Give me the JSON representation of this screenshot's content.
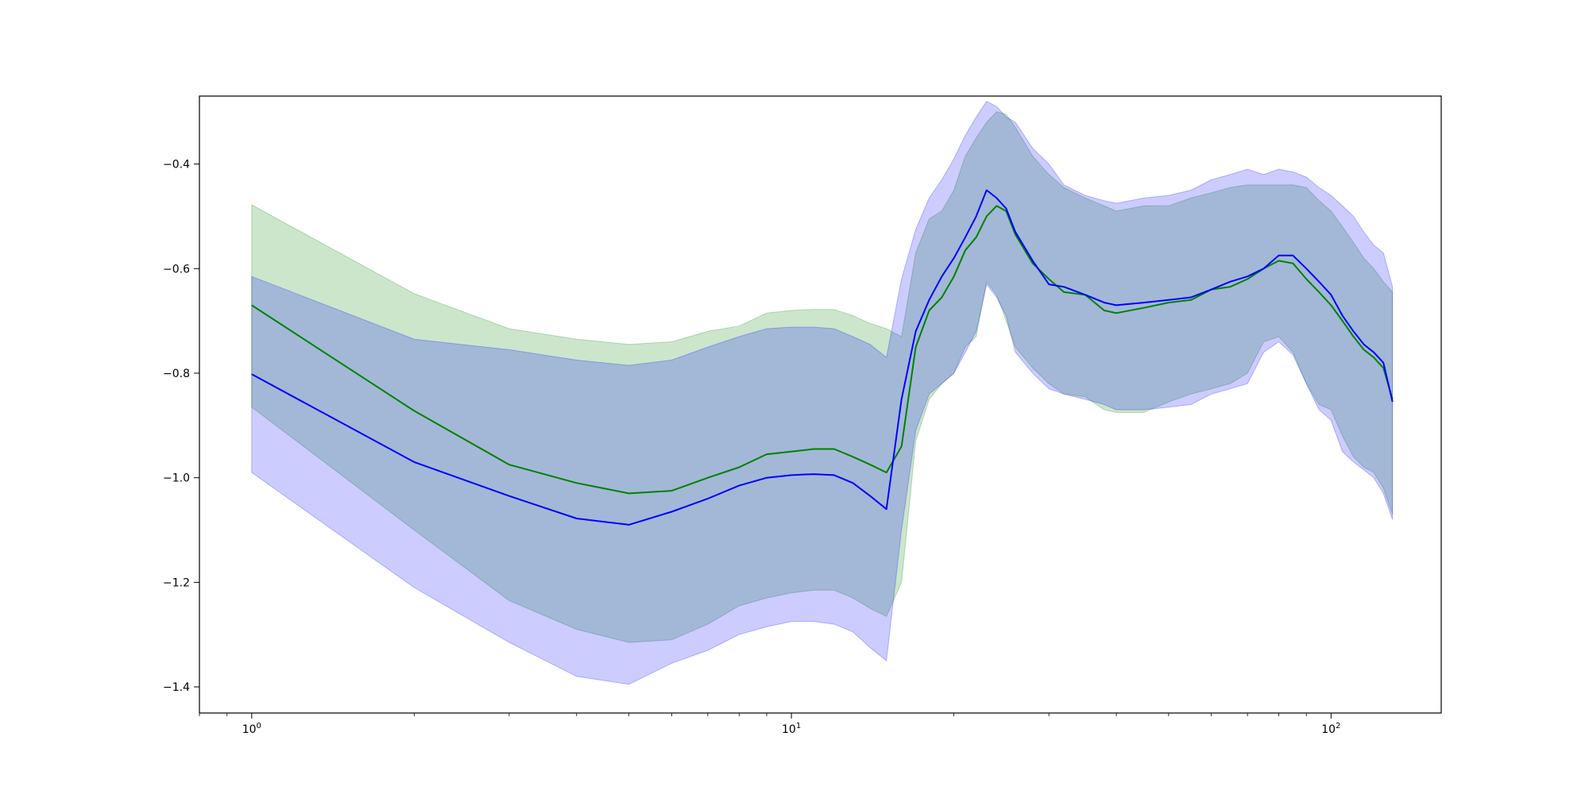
{
  "chart_data": {
    "type": "line",
    "title": "",
    "xlabel": "",
    "ylabel": "",
    "xscale": "log",
    "xlim": [
      0.8,
      160
    ],
    "ylim": [
      -1.45,
      -0.27
    ],
    "grid": false,
    "legend": "none",
    "x_ticks": [
      {
        "value": 1,
        "base": "10",
        "exp": "0"
      },
      {
        "value": 10,
        "base": "10",
        "exp": "1"
      },
      {
        "value": 100,
        "base": "10",
        "exp": "2"
      }
    ],
    "y_ticks": [
      {
        "value": -0.4,
        "label": "−0.4"
      },
      {
        "value": -0.6,
        "label": "−0.6"
      },
      {
        "value": -0.8,
        "label": "−0.8"
      },
      {
        "value": -1.0,
        "label": "−1.0"
      },
      {
        "value": -1.2,
        "label": "−1.2"
      },
      {
        "value": -1.4,
        "label": "−1.4"
      }
    ],
    "series": [
      {
        "color": "#008000",
        "band_color": "#008000",
        "x": [
          1,
          2,
          3,
          4,
          5,
          6,
          7,
          8,
          9,
          10,
          11,
          12,
          13,
          14,
          15,
          16,
          17,
          18,
          19,
          20,
          21,
          22,
          23,
          24,
          25,
          26,
          28,
          30,
          32,
          35,
          38,
          40,
          45,
          50,
          55,
          60,
          65,
          70,
          75,
          80,
          85,
          90,
          95,
          100,
          105,
          110,
          115,
          120,
          125,
          130
        ],
        "y": [
          -0.67,
          -0.872,
          -0.975,
          -1.01,
          -1.03,
          -1.025,
          -1.0,
          -0.98,
          -0.955,
          -0.95,
          -0.945,
          -0.945,
          -0.96,
          -0.975,
          -0.99,
          -0.94,
          -0.75,
          -0.68,
          -0.655,
          -0.615,
          -0.565,
          -0.54,
          -0.5,
          -0.48,
          -0.49,
          -0.535,
          -0.59,
          -0.62,
          -0.645,
          -0.65,
          -0.68,
          -0.685,
          -0.675,
          -0.665,
          -0.66,
          -0.64,
          -0.635,
          -0.62,
          -0.6,
          -0.585,
          -0.59,
          -0.62,
          -0.645,
          -0.67,
          -0.7,
          -0.73,
          -0.755,
          -0.77,
          -0.79,
          -0.85
        ],
        "lower": [
          -0.865,
          -1.1,
          -1.235,
          -1.29,
          -1.315,
          -1.31,
          -1.28,
          -1.245,
          -1.23,
          -1.22,
          -1.215,
          -1.215,
          -1.23,
          -1.25,
          -1.265,
          -1.2,
          -0.93,
          -0.85,
          -0.82,
          -0.8,
          -0.75,
          -0.73,
          -0.625,
          -0.65,
          -0.7,
          -0.75,
          -0.79,
          -0.82,
          -0.84,
          -0.845,
          -0.87,
          -0.875,
          -0.875,
          -0.855,
          -0.84,
          -0.83,
          -0.82,
          -0.8,
          -0.74,
          -0.73,
          -0.76,
          -0.82,
          -0.86,
          -0.87,
          -0.92,
          -0.96,
          -0.98,
          -0.99,
          -1.02,
          -1.07
        ],
        "upper": [
          -0.478,
          -0.648,
          -0.715,
          -0.735,
          -0.745,
          -0.74,
          -0.72,
          -0.71,
          -0.685,
          -0.68,
          -0.678,
          -0.678,
          -0.69,
          -0.705,
          -0.715,
          -0.73,
          -0.57,
          -0.505,
          -0.49,
          -0.45,
          -0.385,
          -0.35,
          -0.32,
          -0.3,
          -0.305,
          -0.33,
          -0.385,
          -0.42,
          -0.445,
          -0.465,
          -0.48,
          -0.49,
          -0.48,
          -0.48,
          -0.465,
          -0.455,
          -0.445,
          -0.44,
          -0.44,
          -0.44,
          -0.44,
          -0.445,
          -0.47,
          -0.49,
          -0.52,
          -0.55,
          -0.58,
          -0.6,
          -0.625,
          -0.645
        ]
      },
      {
        "color": "#0000ff",
        "band_color": "#0000ff",
        "x": [
          1,
          2,
          3,
          4,
          5,
          6,
          7,
          8,
          9,
          10,
          11,
          12,
          13,
          14,
          15,
          16,
          17,
          18,
          19,
          20,
          21,
          22,
          23,
          24,
          25,
          26,
          28,
          30,
          32,
          35,
          38,
          40,
          45,
          50,
          55,
          60,
          65,
          70,
          75,
          80,
          85,
          90,
          95,
          100,
          105,
          110,
          115,
          120,
          125,
          130
        ],
        "y": [
          -0.802,
          -0.97,
          -1.035,
          -1.078,
          -1.09,
          -1.065,
          -1.04,
          -1.015,
          -1.0,
          -0.995,
          -0.993,
          -0.995,
          -1.01,
          -1.035,
          -1.06,
          -0.85,
          -0.72,
          -0.66,
          -0.615,
          -0.58,
          -0.54,
          -0.5,
          -0.45,
          -0.465,
          -0.485,
          -0.53,
          -0.585,
          -0.63,
          -0.635,
          -0.65,
          -0.665,
          -0.67,
          -0.665,
          -0.66,
          -0.655,
          -0.64,
          -0.625,
          -0.615,
          -0.6,
          -0.575,
          -0.575,
          -0.6,
          -0.625,
          -0.65,
          -0.69,
          -0.72,
          -0.745,
          -0.76,
          -0.78,
          -0.855
        ],
        "lower": [
          -0.99,
          -1.21,
          -1.315,
          -1.38,
          -1.395,
          -1.355,
          -1.33,
          -1.3,
          -1.285,
          -1.275,
          -1.275,
          -1.28,
          -1.295,
          -1.325,
          -1.35,
          -1.1,
          -0.91,
          -0.84,
          -0.82,
          -0.8,
          -0.76,
          -0.72,
          -0.63,
          -0.655,
          -0.69,
          -0.76,
          -0.8,
          -0.83,
          -0.84,
          -0.85,
          -0.86,
          -0.87,
          -0.87,
          -0.865,
          -0.86,
          -0.84,
          -0.83,
          -0.82,
          -0.76,
          -0.74,
          -0.765,
          -0.82,
          -0.87,
          -0.89,
          -0.95,
          -0.97,
          -0.985,
          -1.0,
          -1.03,
          -1.08
        ],
        "upper": [
          -0.615,
          -0.735,
          -0.755,
          -0.775,
          -0.785,
          -0.775,
          -0.75,
          -0.73,
          -0.715,
          -0.712,
          -0.712,
          -0.715,
          -0.73,
          -0.745,
          -0.77,
          -0.62,
          -0.525,
          -0.465,
          -0.43,
          -0.39,
          -0.345,
          -0.31,
          -0.28,
          -0.29,
          -0.31,
          -0.32,
          -0.37,
          -0.4,
          -0.44,
          -0.46,
          -0.47,
          -0.475,
          -0.465,
          -0.46,
          -0.45,
          -0.43,
          -0.42,
          -0.41,
          -0.42,
          -0.41,
          -0.415,
          -0.425,
          -0.445,
          -0.46,
          -0.48,
          -0.5,
          -0.53,
          -0.555,
          -0.57,
          -0.635
        ]
      }
    ]
  }
}
